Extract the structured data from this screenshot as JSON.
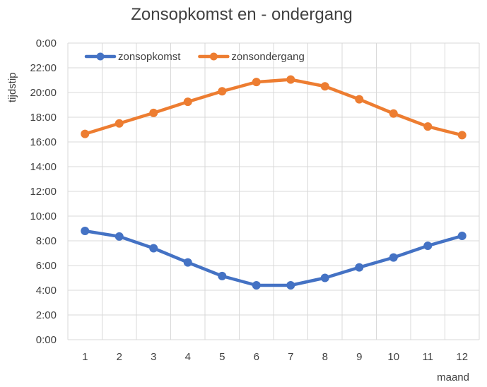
{
  "chart_data": {
    "type": "line",
    "title": "Zonsopkomst en - ondergang",
    "xlabel": "maand",
    "ylabel": "tijdstip",
    "x": [
      1,
      2,
      3,
      4,
      5,
      6,
      7,
      8,
      9,
      10,
      11,
      12
    ],
    "y_tick_labels": [
      "0:00",
      "2:00",
      "4:00",
      "6:00",
      "8:00",
      "10:00",
      "12:00",
      "14:00",
      "16:00",
      "18:00",
      "20:00",
      "22:00",
      "0:00"
    ],
    "ylim_hours": [
      0,
      24
    ],
    "y_tick_step_hours": 2,
    "grid": true,
    "legend_position": "top-left",
    "series": [
      {
        "name": "zonsopkomst",
        "color": "#4472C4",
        "values_hours": [
          8.8,
          8.35,
          7.4,
          6.25,
          5.15,
          4.4,
          4.4,
          5.0,
          5.85,
          6.65,
          7.6,
          8.4
        ]
      },
      {
        "name": "zonsondergang",
        "color": "#ED7D31",
        "values_hours": [
          16.65,
          17.5,
          18.35,
          19.25,
          20.1,
          20.85,
          21.05,
          20.5,
          19.45,
          18.3,
          17.25,
          16.55
        ]
      }
    ]
  }
}
